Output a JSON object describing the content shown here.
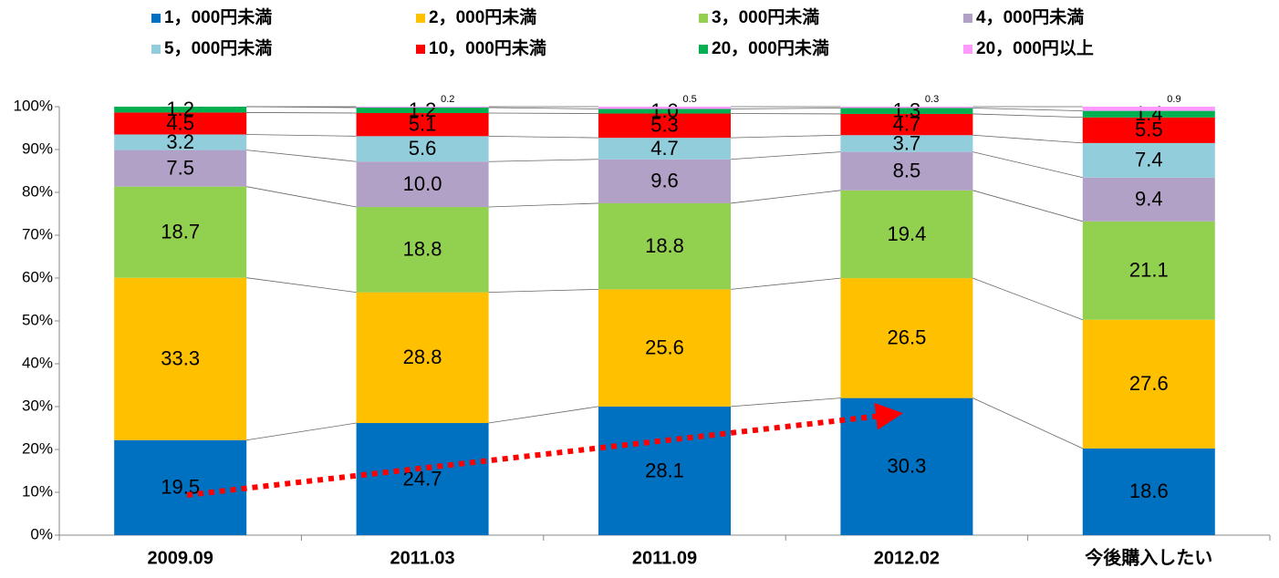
{
  "chart_data": {
    "type": "bar",
    "percent_stacked": true,
    "categories": [
      "2009.09",
      "2011.03",
      "2011.09",
      "2012.02",
      "今後購入したい"
    ],
    "series": [
      {
        "name": "1，000円未満",
        "color": "#0070c0",
        "values": [
          19.5,
          24.7,
          28.1,
          30.3,
          18.6
        ]
      },
      {
        "name": "2，000円未満",
        "color": "#ffc000",
        "values": [
          33.3,
          28.8,
          25.6,
          26.5,
          27.6
        ]
      },
      {
        "name": "3，000円未満",
        "color": "#92d050",
        "values": [
          18.7,
          18.8,
          18.8,
          19.4,
          21.1
        ]
      },
      {
        "name": "4，000円未満",
        "color": "#b2a1c7",
        "values": [
          7.5,
          10,
          9.6,
          8.5,
          9.4
        ],
        "value_labels": [
          "7.5",
          "10.0",
          "9.6",
          "8.5",
          "9.4"
        ]
      },
      {
        "name": "5，000円未満",
        "color": "#92cddc",
        "values": [
          3.2,
          5.6,
          4.7,
          3.7,
          7.4
        ]
      },
      {
        "name": "10，000円未満",
        "color": "#ff0000",
        "values": [
          4.5,
          5.1,
          5.3,
          4.7,
          5.5
        ]
      },
      {
        "name": "20，000円未満",
        "color": "#00b050",
        "values": [
          1.2,
          1.2,
          1,
          1.3,
          1.4
        ],
        "value_labels": [
          "1.2",
          "1.2",
          "1.0",
          "1.3",
          "1.4"
        ]
      },
      {
        "name": "20，000円以上",
        "color": "#ff99ff",
        "values": [
          null,
          0.2,
          0.5,
          0.3,
          0.9
        ]
      }
    ],
    "ylim": [
      0,
      100
    ],
    "yticks": [
      {
        "value": 0,
        "label": "0%"
      },
      {
        "value": 10,
        "label": "10%"
      },
      {
        "value": 20,
        "label": "20%"
      },
      {
        "value": 30,
        "label": "30%"
      },
      {
        "value": 40,
        "label": "40%"
      },
      {
        "value": 50,
        "label": "50%"
      },
      {
        "value": 60,
        "label": "60%"
      },
      {
        "value": 70,
        "label": "70%"
      },
      {
        "value": 80,
        "label": "80%"
      },
      {
        "value": 90,
        "label": "90%"
      },
      {
        "value": 100,
        "label": "100%"
      }
    ]
  }
}
